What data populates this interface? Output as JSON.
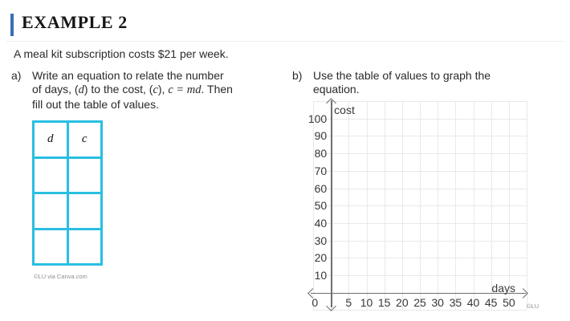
{
  "header": {
    "title": "EXAMPLE 2"
  },
  "intro": "A meal kit subscription costs $21 per week.",
  "parts": {
    "a": {
      "label": "a)",
      "lines": [
        [
          {
            "t": "Write an equation to relate the number"
          }
        ],
        [
          {
            "t": "of days, ("
          },
          {
            "t": "d",
            "math": true
          },
          {
            "t": ") to the cost, ("
          },
          {
            "t": "c",
            "math": true
          },
          {
            "t": "), "
          },
          {
            "t": "c = md",
            "math": true
          },
          {
            "t": ". Then"
          }
        ],
        [
          {
            "t": "fill out the table of values."
          }
        ]
      ]
    },
    "b": {
      "label": "b)",
      "lines": [
        [
          {
            "t": "Use the table of values to graph the"
          }
        ],
        [
          {
            "t": "equation."
          }
        ]
      ]
    }
  },
  "table": {
    "headers": [
      "d",
      "c"
    ],
    "empty_rows": 3,
    "border_color": "#29bfe2",
    "credit": "©LU via Canva.com"
  },
  "chart_data": {
    "type": "line",
    "title": "",
    "xlabel": "days",
    "ylabel": "cost",
    "x_ticks": [
      5,
      10,
      15,
      20,
      25,
      30,
      35,
      40,
      45,
      50
    ],
    "y_ticks": [
      100,
      90,
      80,
      70,
      60,
      50,
      40,
      30,
      20,
      10
    ],
    "origin_label": "0",
    "xlim": [
      0,
      55
    ],
    "ylim": [
      0,
      110
    ],
    "grid": true,
    "legend": "none",
    "series": [],
    "credit": "©LU"
  }
}
